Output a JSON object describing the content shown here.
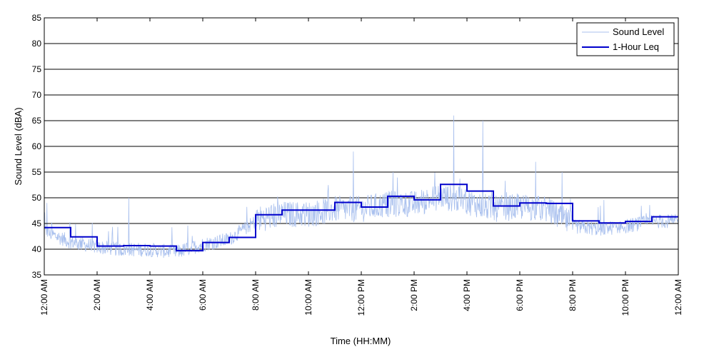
{
  "chart_data": {
    "type": "line",
    "title": "",
    "xlabel": "Time (HH:MM)",
    "ylabel": "Sound Level (dBA)",
    "ylim": [
      35,
      85
    ],
    "yticks": [
      35,
      40,
      45,
      50,
      55,
      60,
      65,
      70,
      75,
      80,
      85
    ],
    "xlim": [
      0,
      24
    ],
    "xtick_labels": [
      "12:00 AM",
      "2:00 AM",
      "4:00 AM",
      "6:00 AM",
      "8:00 AM",
      "10:00 AM",
      "12:00 PM",
      "2:00 PM",
      "4:00 PM",
      "6:00 PM",
      "8:00 PM",
      "10:00 PM",
      "12:00 AM"
    ],
    "grid": "horizontal",
    "legend_position": "top-right",
    "colors": {
      "sound_level": "#a9c0ee",
      "leq": "#0000cc"
    },
    "sound_level_profile": {
      "hours": [
        0,
        1,
        2,
        3,
        4,
        5,
        6,
        7,
        8,
        9,
        10,
        11,
        12,
        13,
        14,
        15,
        16,
        17,
        18,
        19,
        20,
        21,
        22,
        23
      ],
      "typical_level": [
        43,
        41,
        40,
        39.5,
        39.5,
        39,
        40.5,
        41.5,
        45,
        46,
        46,
        47,
        47,
        48,
        48,
        49.5,
        48.5,
        47,
        47.5,
        47,
        44,
        43.5,
        44,
        45
      ],
      "peaks": [
        {
          "hour": 0.1,
          "value": 49
        },
        {
          "hour": 3.2,
          "value": 50
        },
        {
          "hour": 11.7,
          "value": 59
        },
        {
          "hour": 13.2,
          "value": 55
        },
        {
          "hour": 15.5,
          "value": 66
        },
        {
          "hour": 16.6,
          "value": 65
        },
        {
          "hour": 18.6,
          "value": 57
        },
        {
          "hour": 19.6,
          "value": 55
        }
      ]
    },
    "series": [
      {
        "name": "Sound Level",
        "style": "thin-light"
      },
      {
        "name": "1-Hour Leq",
        "style": "step",
        "hours": [
          0,
          1,
          2,
          3,
          4,
          5,
          6,
          7,
          8,
          9,
          10,
          11,
          12,
          13,
          14,
          15,
          16,
          17,
          18,
          19,
          20,
          21,
          22,
          23,
          24
        ],
        "values": [
          44.2,
          42.4,
          40.6,
          40.7,
          40.6,
          39.7,
          41.3,
          42.3,
          46.7,
          47.6,
          47.6,
          49.1,
          48.2,
          50.3,
          49.6,
          52.6,
          51.3,
          48.4,
          49.0,
          48.9,
          45.5,
          45.1,
          45.4,
          46.3,
          46.3
        ]
      }
    ]
  }
}
